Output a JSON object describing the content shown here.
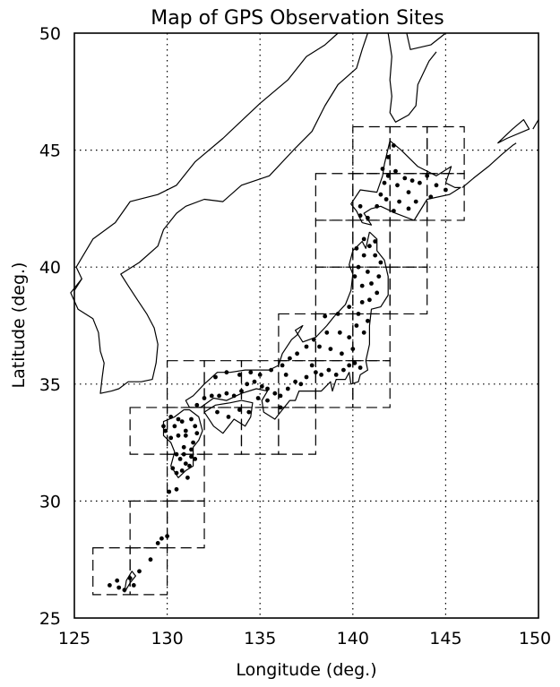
{
  "title": "Map of GPS Observation Sites",
  "xlabel": "Longitude (deg.)",
  "ylabel": "Latitude (deg.)",
  "x_ticks": [
    "125",
    "130",
    "135",
    "140",
    "145",
    "150"
  ],
  "y_ticks": [
    "25",
    "30",
    "35",
    "40",
    "45",
    "50"
  ],
  "map": {
    "projection": "equirectangular",
    "lon_range": [
      125,
      150
    ],
    "lat_range": [
      25,
      50
    ],
    "grid": "dotted, every 5 deg",
    "coastline_color": "#000000",
    "site_marker_color": "#000000",
    "coastlines": [
      [
        [
          125.0,
          39.0
        ],
        [
          125.4,
          39.5
        ],
        [
          125.1,
          40.0
        ],
        [
          126.0,
          41.2
        ],
        [
          127.2,
          41.9
        ],
        [
          128.0,
          42.8
        ],
        [
          129.5,
          43.1
        ],
        [
          130.5,
          43.5
        ],
        [
          131.5,
          44.5
        ],
        [
          133.0,
          45.5
        ],
        [
          135.0,
          47.0
        ],
        [
          136.5,
          48.0
        ],
        [
          137.5,
          49.0
        ],
        [
          138.5,
          49.5
        ],
        [
          139.2,
          50.0
        ]
      ],
      [
        [
          125.4,
          39.5
        ],
        [
          124.8,
          38.9
        ],
        [
          125.2,
          38.2
        ],
        [
          126.0,
          37.8
        ],
        [
          126.3,
          37.2
        ],
        [
          126.4,
          36.4
        ],
        [
          126.6,
          35.9
        ],
        [
          126.5,
          35.3
        ],
        [
          126.4,
          34.6
        ],
        [
          127.0,
          34.7
        ],
        [
          127.4,
          34.8
        ],
        [
          127.9,
          35.1
        ],
        [
          128.6,
          35.1
        ],
        [
          129.2,
          35.2
        ],
        [
          129.4,
          35.9
        ],
        [
          129.5,
          36.7
        ],
        [
          129.3,
          37.4
        ],
        [
          128.9,
          38.0
        ],
        [
          128.4,
          38.6
        ],
        [
          127.9,
          39.2
        ],
        [
          127.5,
          39.7
        ],
        [
          128.5,
          40.2
        ],
        [
          129.5,
          40.9
        ],
        [
          129.8,
          41.6
        ],
        [
          130.5,
          42.3
        ],
        [
          131.0,
          42.6
        ],
        [
          132.0,
          42.9
        ],
        [
          133.0,
          42.8
        ],
        [
          134.0,
          43.5
        ],
        [
          135.5,
          43.9
        ],
        [
          136.8,
          45.0
        ],
        [
          137.8,
          45.8
        ],
        [
          138.5,
          46.9
        ],
        [
          139.2,
          47.8
        ],
        [
          140.2,
          48.5
        ],
        [
          140.5,
          49.3
        ],
        [
          140.8,
          50.0
        ]
      ],
      [
        [
          141.9,
          50.0
        ],
        [
          142.1,
          49.0
        ],
        [
          142.0,
          48.0
        ],
        [
          142.1,
          47.3
        ],
        [
          142.0,
          46.6
        ],
        [
          142.3,
          46.2
        ],
        [
          143.0,
          46.5
        ],
        [
          143.4,
          46.9
        ],
        [
          143.5,
          47.8
        ],
        [
          144.1,
          48.8
        ],
        [
          144.5,
          49.2
        ]
      ],
      [
        [
          142.9,
          50.0
        ],
        [
          143.1,
          49.3
        ],
        [
          144.2,
          49.5
        ],
        [
          145.0,
          50.0
        ]
      ],
      [
        [
          140.5,
          41.9
        ],
        [
          140.2,
          42.4
        ],
        [
          139.9,
          42.7
        ],
        [
          140.4,
          43.3
        ],
        [
          141.3,
          43.2
        ],
        [
          141.6,
          43.9
        ],
        [
          141.7,
          44.4
        ],
        [
          142.0,
          45.4
        ],
        [
          142.6,
          45.0
        ],
        [
          143.5,
          44.3
        ],
        [
          144.5,
          43.9
        ],
        [
          145.3,
          44.3
        ],
        [
          145.0,
          43.6
        ],
        [
          145.5,
          43.4
        ],
        [
          145.8,
          43.4
        ],
        [
          145.2,
          43.1
        ],
        [
          144.0,
          42.9
        ],
        [
          143.3,
          42.0
        ],
        [
          142.3,
          42.3
        ],
        [
          141.5,
          42.6
        ],
        [
          141.0,
          42.5
        ],
        [
          140.6,
          42.3
        ],
        [
          141.0,
          41.8
        ],
        [
          140.5,
          41.9
        ]
      ],
      [
        [
          145.9,
          43.4
        ],
        [
          146.5,
          43.8
        ],
        [
          147.3,
          44.3
        ],
        [
          148.0,
          44.8
        ],
        [
          148.6,
          45.2
        ],
        [
          148.8,
          45.3
        ]
      ],
      [
        [
          147.8,
          45.3
        ],
        [
          148.6,
          45.9
        ],
        [
          149.2,
          46.3
        ],
        [
          149.5,
          45.9
        ],
        [
          148.3,
          45.5
        ],
        [
          147.8,
          45.3
        ]
      ],
      [
        [
          149.7,
          45.9
        ],
        [
          150.0,
          46.3
        ]
      ],
      [
        [
          140.9,
          41.5
        ],
        [
          141.3,
          41.2
        ],
        [
          141.3,
          40.7
        ],
        [
          141.7,
          40.3
        ],
        [
          141.9,
          39.6
        ],
        [
          141.9,
          38.8
        ],
        [
          141.5,
          38.3
        ],
        [
          141.0,
          38.2
        ],
        [
          140.9,
          37.5
        ],
        [
          140.9,
          36.7
        ],
        [
          140.7,
          36.0
        ],
        [
          140.8,
          35.6
        ],
        [
          140.4,
          35.4
        ],
        [
          140.3,
          35.1
        ],
        [
          139.9,
          35.0
        ],
        [
          139.8,
          35.5
        ],
        [
          139.6,
          35.2
        ],
        [
          139.1,
          35.2
        ],
        [
          138.9,
          34.7
        ],
        [
          138.8,
          35.1
        ],
        [
          138.3,
          34.7
        ],
        [
          137.8,
          34.7
        ],
        [
          137.1,
          34.7
        ],
        [
          136.9,
          34.3
        ],
        [
          136.6,
          34.3
        ],
        [
          136.2,
          33.9
        ],
        [
          135.8,
          33.5
        ],
        [
          135.2,
          33.8
        ],
        [
          135.1,
          34.3
        ],
        [
          135.4,
          34.7
        ],
        [
          134.8,
          34.8
        ],
        [
          134.0,
          34.6
        ],
        [
          133.2,
          34.3
        ],
        [
          132.5,
          34.4
        ],
        [
          131.8,
          34.0
        ],
        [
          131.2,
          34.0
        ],
        [
          131.0,
          34.3
        ],
        [
          131.4,
          34.5
        ],
        [
          132.0,
          35.0
        ],
        [
          132.7,
          35.5
        ],
        [
          133.4,
          35.5
        ],
        [
          134.2,
          35.6
        ],
        [
          135.0,
          35.6
        ],
        [
          135.5,
          35.6
        ],
        [
          136.0,
          35.8
        ],
        [
          136.2,
          36.3
        ],
        [
          136.7,
          36.9
        ],
        [
          137.0,
          37.1
        ],
        [
          137.3,
          37.5
        ],
        [
          136.9,
          37.3
        ],
        [
          137.3,
          36.8
        ],
        [
          138.0,
          37.0
        ],
        [
          138.6,
          37.5
        ],
        [
          139.0,
          37.9
        ],
        [
          139.6,
          38.4
        ],
        [
          139.9,
          39.0
        ],
        [
          140.0,
          39.7
        ],
        [
          139.8,
          40.1
        ],
        [
          140.0,
          40.7
        ],
        [
          140.5,
          41.1
        ],
        [
          140.7,
          40.8
        ],
        [
          140.9,
          41.5
        ]
      ],
      [
        [
          132.0,
          33.8
        ],
        [
          132.6,
          34.1
        ],
        [
          133.4,
          34.2
        ],
        [
          134.0,
          34.3
        ],
        [
          134.6,
          34.2
        ],
        [
          134.5,
          33.6
        ],
        [
          134.2,
          33.2
        ],
        [
          133.6,
          33.5
        ],
        [
          133.0,
          32.9
        ],
        [
          132.5,
          33.2
        ],
        [
          132.0,
          33.8
        ]
      ],
      [
        [
          130.9,
          33.9
        ],
        [
          130.4,
          33.6
        ],
        [
          129.8,
          33.4
        ],
        [
          129.8,
          32.8
        ],
        [
          130.2,
          32.5
        ],
        [
          130.4,
          32.1
        ],
        [
          130.2,
          31.5
        ],
        [
          130.6,
          31.0
        ],
        [
          131.0,
          31.3
        ],
        [
          131.4,
          31.5
        ],
        [
          131.4,
          32.3
        ],
        [
          131.7,
          32.6
        ],
        [
          131.9,
          33.0
        ],
        [
          131.7,
          33.6
        ],
        [
          131.2,
          33.9
        ],
        [
          130.9,
          33.9
        ]
      ],
      [
        [
          127.7,
          26.1
        ],
        [
          128.0,
          26.5
        ],
        [
          128.3,
          26.8
        ],
        [
          128.1,
          27.0
        ],
        [
          127.8,
          26.6
        ],
        [
          127.7,
          26.1
        ]
      ]
    ],
    "site_boxes": [
      [
        126,
        26,
        128,
        28
      ],
      [
        128,
        26,
        130,
        28
      ],
      [
        128,
        28,
        130,
        30
      ],
      [
        130,
        28,
        132,
        30
      ],
      [
        130,
        30,
        132,
        32
      ],
      [
        128,
        32,
        130,
        34
      ],
      [
        130,
        32,
        132,
        34
      ],
      [
        132,
        32,
        134,
        34
      ],
      [
        134,
        32,
        136,
        34
      ],
      [
        136,
        32,
        138,
        34
      ],
      [
        130,
        34,
        132,
        36
      ],
      [
        132,
        34,
        134,
        36
      ],
      [
        134,
        34,
        136,
        36
      ],
      [
        136,
        34,
        138,
        36
      ],
      [
        138,
        34,
        140,
        36
      ],
      [
        140,
        34,
        142,
        36
      ],
      [
        136,
        36,
        138,
        38
      ],
      [
        138,
        36,
        140,
        38
      ],
      [
        140,
        36,
        142,
        38
      ],
      [
        138,
        38,
        140,
        40
      ],
      [
        140,
        38,
        142,
        40
      ],
      [
        142,
        38,
        144,
        40
      ],
      [
        138,
        40,
        140,
        42
      ],
      [
        140,
        40,
        142,
        42
      ],
      [
        142,
        40,
        144,
        42
      ],
      [
        138,
        42,
        140,
        44
      ],
      [
        140,
        42,
        142,
        44
      ],
      [
        142,
        42,
        144,
        44
      ],
      [
        144,
        42,
        146,
        44
      ],
      [
        140,
        44,
        142,
        46
      ],
      [
        142,
        44,
        144,
        46
      ],
      [
        144,
        44,
        146,
        46
      ]
    ],
    "sites": [
      [
        126.9,
        26.4
      ],
      [
        127.4,
        26.3
      ],
      [
        127.7,
        26.2
      ],
      [
        127.3,
        26.6
      ],
      [
        128.0,
        26.7
      ],
      [
        128.2,
        26.4
      ],
      [
        128.5,
        27.0
      ],
      [
        129.1,
        27.5
      ],
      [
        129.7,
        28.4
      ],
      [
        130.0,
        28.5
      ],
      [
        129.5,
        28.2
      ],
      [
        130.1,
        30.4
      ],
      [
        130.5,
        30.5
      ],
      [
        130.8,
        31.3
      ],
      [
        131.2,
        31.5
      ],
      [
        131.3,
        31.9
      ],
      [
        130.7,
        31.8
      ],
      [
        130.3,
        31.4
      ],
      [
        130.5,
        32.0
      ],
      [
        130.9,
        32.3
      ],
      [
        131.4,
        32.5
      ],
      [
        131.6,
        32.9
      ],
      [
        131.0,
        32.8
      ],
      [
        130.6,
        32.8
      ],
      [
        130.2,
        32.7
      ],
      [
        129.9,
        33.0
      ],
      [
        130.4,
        33.2
      ],
      [
        130.8,
        33.4
      ],
      [
        131.3,
        33.5
      ],
      [
        131.5,
        33.2
      ],
      [
        131.0,
        33.0
      ],
      [
        130.6,
        33.5
      ],
      [
        130.2,
        33.6
      ],
      [
        129.8,
        33.2
      ],
      [
        131.1,
        31.0
      ],
      [
        131.0,
        31.6
      ],
      [
        130.5,
        31.2
      ],
      [
        130.9,
        32.0
      ],
      [
        131.3,
        32.2
      ],
      [
        131.5,
        31.8
      ],
      [
        131.6,
        34.1
      ],
      [
        132.0,
        34.4
      ],
      [
        132.4,
        34.5
      ],
      [
        132.8,
        34.5
      ],
      [
        133.2,
        34.6
      ],
      [
        133.6,
        34.5
      ],
      [
        134.0,
        34.7
      ],
      [
        134.3,
        35.0
      ],
      [
        134.7,
        35.1
      ],
      [
        135.1,
        34.9
      ],
      [
        135.4,
        34.8
      ],
      [
        135.8,
        34.6
      ],
      [
        136.1,
        34.5
      ],
      [
        136.5,
        34.8
      ],
      [
        136.9,
        35.1
      ],
      [
        137.2,
        35.0
      ],
      [
        137.5,
        35.3
      ],
      [
        138.0,
        35.5
      ],
      [
        138.3,
        35.4
      ],
      [
        138.7,
        35.6
      ],
      [
        139.1,
        35.4
      ],
      [
        139.5,
        35.6
      ],
      [
        139.8,
        35.8
      ],
      [
        140.1,
        35.9
      ],
      [
        140.4,
        35.7
      ],
      [
        132.6,
        35.3
      ],
      [
        133.2,
        35.5
      ],
      [
        133.9,
        35.4
      ],
      [
        134.5,
        35.5
      ],
      [
        135.0,
        35.4
      ],
      [
        135.6,
        35.6
      ],
      [
        136.2,
        35.8
      ],
      [
        136.6,
        36.1
      ],
      [
        137.0,
        36.3
      ],
      [
        137.5,
        36.6
      ],
      [
        138.2,
        36.6
      ],
      [
        138.8,
        36.5
      ],
      [
        139.4,
        36.3
      ],
      [
        140.0,
        36.5
      ],
      [
        139.8,
        37.0
      ],
      [
        139.3,
        37.2
      ],
      [
        138.6,
        37.2
      ],
      [
        137.9,
        36.9
      ],
      [
        138.5,
        37.9
      ],
      [
        139.2,
        38.0
      ],
      [
        139.8,
        38.3
      ],
      [
        140.3,
        38.0
      ],
      [
        140.8,
        37.7
      ],
      [
        140.6,
        37.2
      ],
      [
        140.2,
        37.5
      ],
      [
        140.9,
        38.6
      ],
      [
        141.3,
        38.9
      ],
      [
        141.0,
        39.3
      ],
      [
        140.5,
        39.2
      ],
      [
        140.1,
        39.6
      ],
      [
        140.3,
        40.0
      ],
      [
        140.8,
        39.8
      ],
      [
        141.4,
        39.6
      ],
      [
        141.5,
        40.2
      ],
      [
        141.2,
        40.5
      ],
      [
        140.6,
        40.5
      ],
      [
        140.2,
        40.8
      ],
      [
        140.6,
        41.2
      ],
      [
        141.2,
        41.1
      ],
      [
        140.9,
        40.9
      ],
      [
        140.5,
        38.5
      ],
      [
        136.4,
        35.4
      ],
      [
        137.8,
        35.8
      ],
      [
        134.9,
        34.4
      ],
      [
        133.9,
        33.9
      ],
      [
        133.3,
        33.6
      ],
      [
        132.7,
        33.8
      ],
      [
        134.4,
        33.8
      ],
      [
        136.1,
        34.0
      ],
      [
        135.4,
        34.3
      ],
      [
        140.4,
        42.2
      ],
      [
        140.8,
        42.1
      ],
      [
        140.4,
        42.6
      ],
      [
        141.3,
        42.6
      ],
      [
        141.5,
        43.1
      ],
      [
        141.7,
        43.6
      ],
      [
        141.6,
        44.2
      ],
      [
        141.9,
        44.7
      ],
      [
        142.2,
        45.2
      ],
      [
        141.9,
        43.9
      ],
      [
        142.4,
        43.5
      ],
      [
        142.8,
        43.8
      ],
      [
        143.2,
        43.7
      ],
      [
        143.6,
        43.6
      ],
      [
        144.0,
        43.9
      ],
      [
        144.5,
        43.5
      ],
      [
        145.0,
        43.3
      ],
      [
        143.0,
        43.2
      ],
      [
        143.4,
        42.8
      ],
      [
        142.5,
        42.8
      ],
      [
        142.2,
        42.4
      ],
      [
        141.8,
        42.9
      ],
      [
        142.3,
        44.1
      ],
      [
        144.2,
        43.0
      ],
      [
        143.0,
        42.5
      ]
    ]
  }
}
